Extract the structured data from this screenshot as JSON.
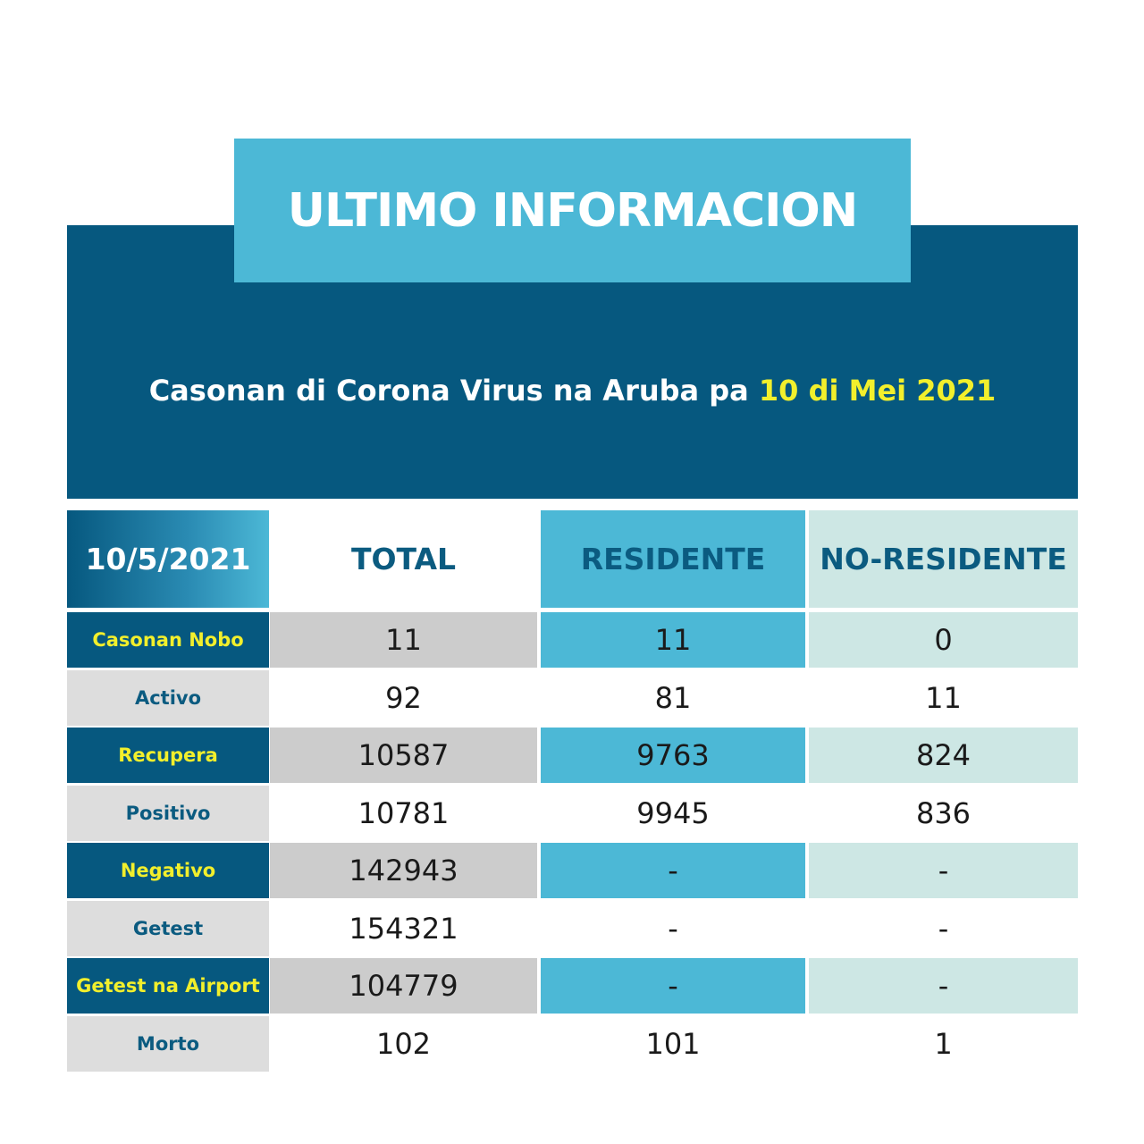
{
  "header": {
    "title": "ULTIMO INFORMACION",
    "subtitle_prefix": "Casonan di Corona Virus na Aruba pa ",
    "subtitle_date": "10 di Mei 2021"
  },
  "table": {
    "columns": [
      "10/5/2021",
      "TOTAL",
      "RESIDENTE",
      "NO-RESIDENTE"
    ],
    "rows": [
      {
        "label": "Casonan Nobo",
        "total": "11",
        "residente": "11",
        "no_residente": "0"
      },
      {
        "label": "Activo",
        "total": "92",
        "residente": "81",
        "no_residente": "11"
      },
      {
        "label": "Recupera",
        "total": "10587",
        "residente": "9763",
        "no_residente": "824"
      },
      {
        "label": "Positivo",
        "total": "10781",
        "residente": "9945",
        "no_residente": "836"
      },
      {
        "label": "Negativo",
        "total": "142943",
        "residente": "-",
        "no_residente": "-"
      },
      {
        "label": "Getest",
        "total": "154321",
        "residente": "-",
        "no_residente": "-"
      },
      {
        "label": "Getest na Airport",
        "total": "104779",
        "residente": "-",
        "no_residente": "-"
      },
      {
        "label": "Morto",
        "total": "102",
        "residente": "101",
        "no_residente": "1"
      }
    ]
  },
  "colors": {
    "dark": "#06587f",
    "light_blue": "#4cb8d6",
    "mint": "#cde7e4",
    "grey": "#cccccc",
    "yellow": "#f2ef2c"
  }
}
